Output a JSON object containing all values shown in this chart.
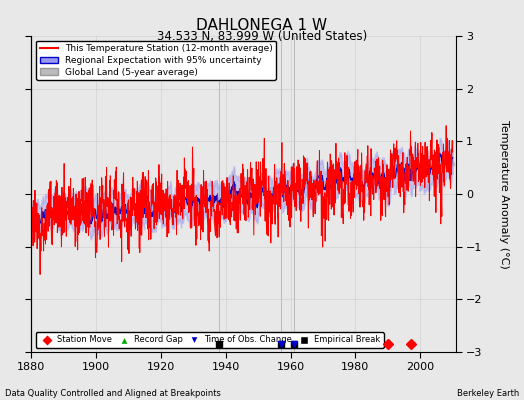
{
  "title": "DAHLONEGA 1 W",
  "subtitle": "34.533 N, 83.999 W (United States)",
  "ylabel": "Temperature Anomaly (°C)",
  "xlabel_left": "Data Quality Controlled and Aligned at Breakpoints",
  "xlabel_right": "Berkeley Earth",
  "ylim": [
    -3,
    3
  ],
  "xlim": [
    1880,
    2011
  ],
  "yticks": [
    -3,
    -2,
    -1,
    0,
    1,
    2,
    3
  ],
  "xticks": [
    1880,
    1900,
    1920,
    1940,
    1960,
    1980,
    2000
  ],
  "station_color": "#FF0000",
  "regional_color": "#0000CD",
  "regional_fill_color": "#9999EE",
  "global_color": "#BBBBBB",
  "background_color": "#E8E8E8",
  "grid_color": "#CCCCCC",
  "empirical_breaks": [
    1938,
    1957,
    1961
  ],
  "station_moves": [
    1990,
    1997
  ],
  "obs_changes": [
    1957,
    1961
  ],
  "record_gaps": [],
  "seed": 42
}
